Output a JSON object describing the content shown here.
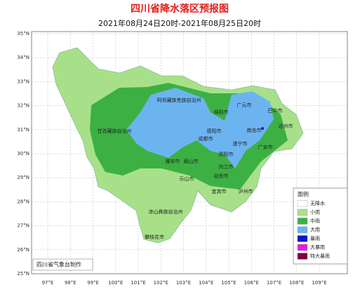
{
  "header": {
    "title": "四川省降水落区预报图",
    "subtitle": "2021年08月24日20时-2021年08月25日20时"
  },
  "axes": {
    "lat_labels": [
      "35°N",
      "34°N",
      "33°N",
      "32°N",
      "31°N",
      "30°N",
      "29°N",
      "28°N",
      "27°N",
      "26°N",
      "25°N"
    ],
    "lon_labels": [
      "97°E",
      "98°E",
      "99°E",
      "100°E",
      "101°E",
      "102°E",
      "103°E",
      "104°E",
      "105°E",
      "106°E",
      "107°E",
      "108°E",
      "109°E"
    ]
  },
  "cities": [
    "阿坝藏族羌族自治州",
    "绵阳市",
    "广元市",
    "巴中市",
    "甘孜藏族自治州",
    "德阳市",
    "南充市",
    "达州市",
    "成都市",
    "遂宁市",
    "广安市",
    "资阳市",
    "雅安市",
    "眉山市",
    "内江市",
    "乐山市",
    "自贡市",
    "宜宾市",
    "泸州市",
    "凉山彝族自治州",
    "攀枝花市"
  ],
  "legend": {
    "title": "图例",
    "items": [
      {
        "label": "无降水",
        "color": "#ffffff"
      },
      {
        "label": "小雨",
        "color": "#a8e08a"
      },
      {
        "label": "中雨",
        "color": "#3cb043"
      },
      {
        "label": "大雨",
        "color": "#6cb4f0"
      },
      {
        "label": "暴雨",
        "color": "#1010d0"
      },
      {
        "label": "大暴雨",
        "color": "#e020e0"
      },
      {
        "label": "特大暴雨",
        "color": "#800040"
      }
    ]
  },
  "footer": {
    "credit": "四川省气象台制作"
  }
}
